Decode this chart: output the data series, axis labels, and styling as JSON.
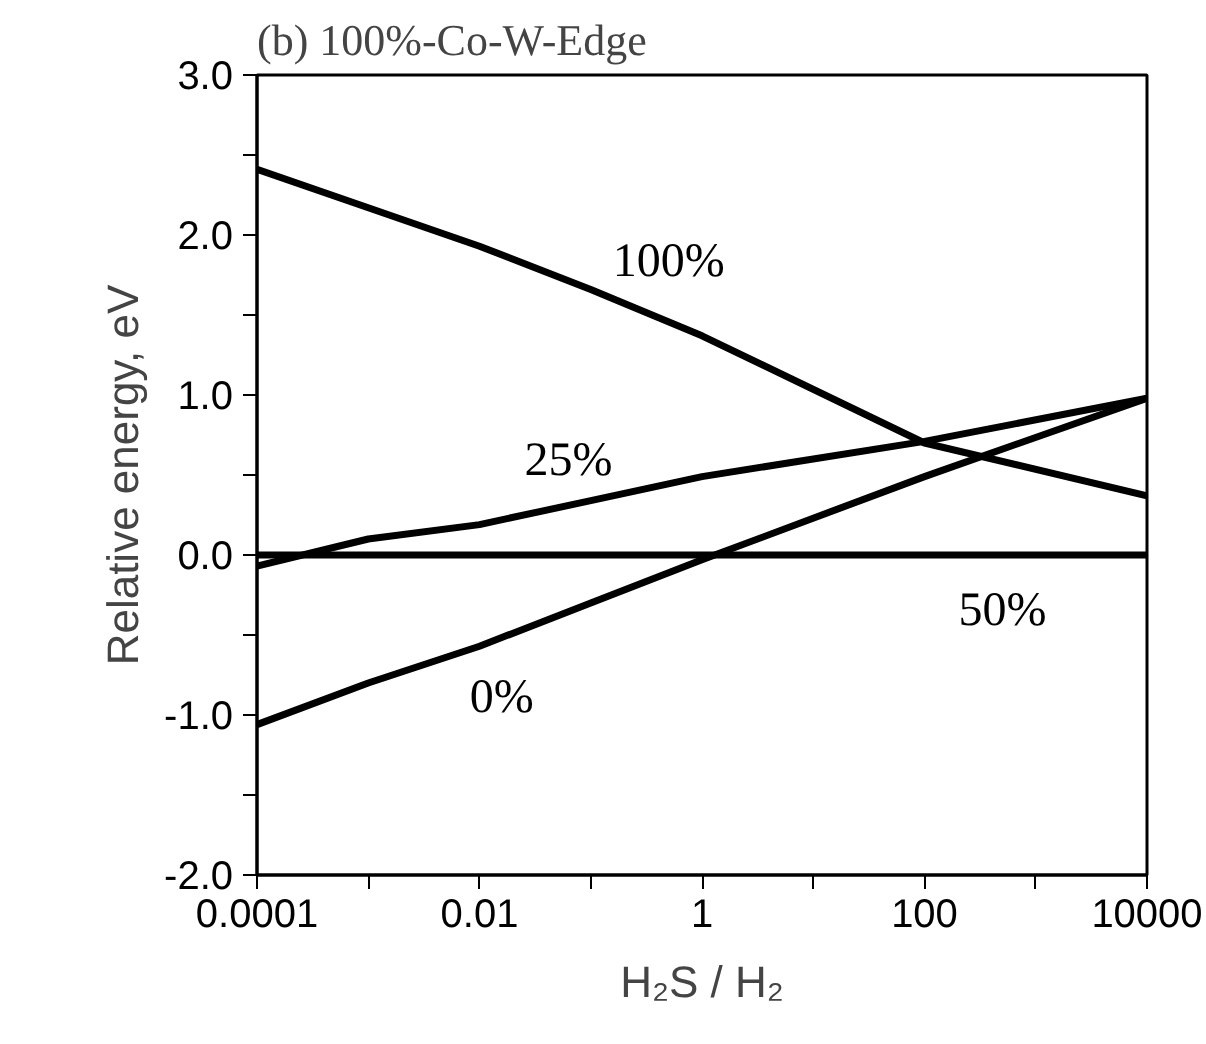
{
  "chart_data": {
    "type": "line",
    "title": "(b) 100%-Co-W-Edge",
    "xlabel": "H₂S / H₂",
    "ylabel": "Relative energy, eV",
    "x": [
      0.0001,
      0.001,
      0.01,
      0.1,
      1,
      100,
      10000
    ],
    "series": [
      {
        "name": "100%",
        "color": "#000000",
        "values": [
          2.41,
          2.17,
          1.93,
          1.66,
          1.37,
          0.7,
          0.37
        ]
      },
      {
        "name": "25%",
        "color": "#000000",
        "values": [
          -0.07,
          0.1,
          0.19,
          0.34,
          0.49,
          0.71,
          0.98
        ]
      },
      {
        "name": "50%",
        "color": "#000000",
        "values": [
          0,
          0,
          0,
          0,
          0,
          0,
          0
        ]
      },
      {
        "name": "0%",
        "color": "#000000",
        "values": [
          -1.06,
          -0.8,
          -0.57,
          -0.3,
          -0.03,
          0.49,
          0.98
        ]
      }
    ],
    "log": "x",
    "xlim": [
      0.0001,
      10000
    ],
    "ylim": [
      -2.0,
      3.0
    ],
    "xticks": [
      {
        "value": 0.0001,
        "label": "0.0001"
      },
      {
        "value": 0.001,
        "label": null
      },
      {
        "value": 0.01,
        "label": "0.01"
      },
      {
        "value": 0.1,
        "label": null
      },
      {
        "value": 1,
        "label": "1"
      },
      {
        "value": 10,
        "label": null
      },
      {
        "value": 100,
        "label": "100"
      },
      {
        "value": 1000,
        "label": null
      },
      {
        "value": 10000,
        "label": "10000"
      }
    ],
    "yticks": [
      {
        "value": -2.0,
        "label": "-2.0"
      },
      {
        "value": -1.5,
        "label": null
      },
      {
        "value": -1.0,
        "label": "-1.0"
      },
      {
        "value": -0.5,
        "label": null
      },
      {
        "value": 0.0,
        "label": "0.0"
      },
      {
        "value": 0.5,
        "label": null
      },
      {
        "value": 1.0,
        "label": "1.0"
      },
      {
        "value": 1.5,
        "label": null
      },
      {
        "value": 2.0,
        "label": "2.0"
      },
      {
        "value": 2.5,
        "label": null
      },
      {
        "value": 3.0,
        "label": "3.0"
      }
    ],
    "grid": false,
    "legend": false,
    "marker": "none",
    "line_style": "solid"
  }
}
